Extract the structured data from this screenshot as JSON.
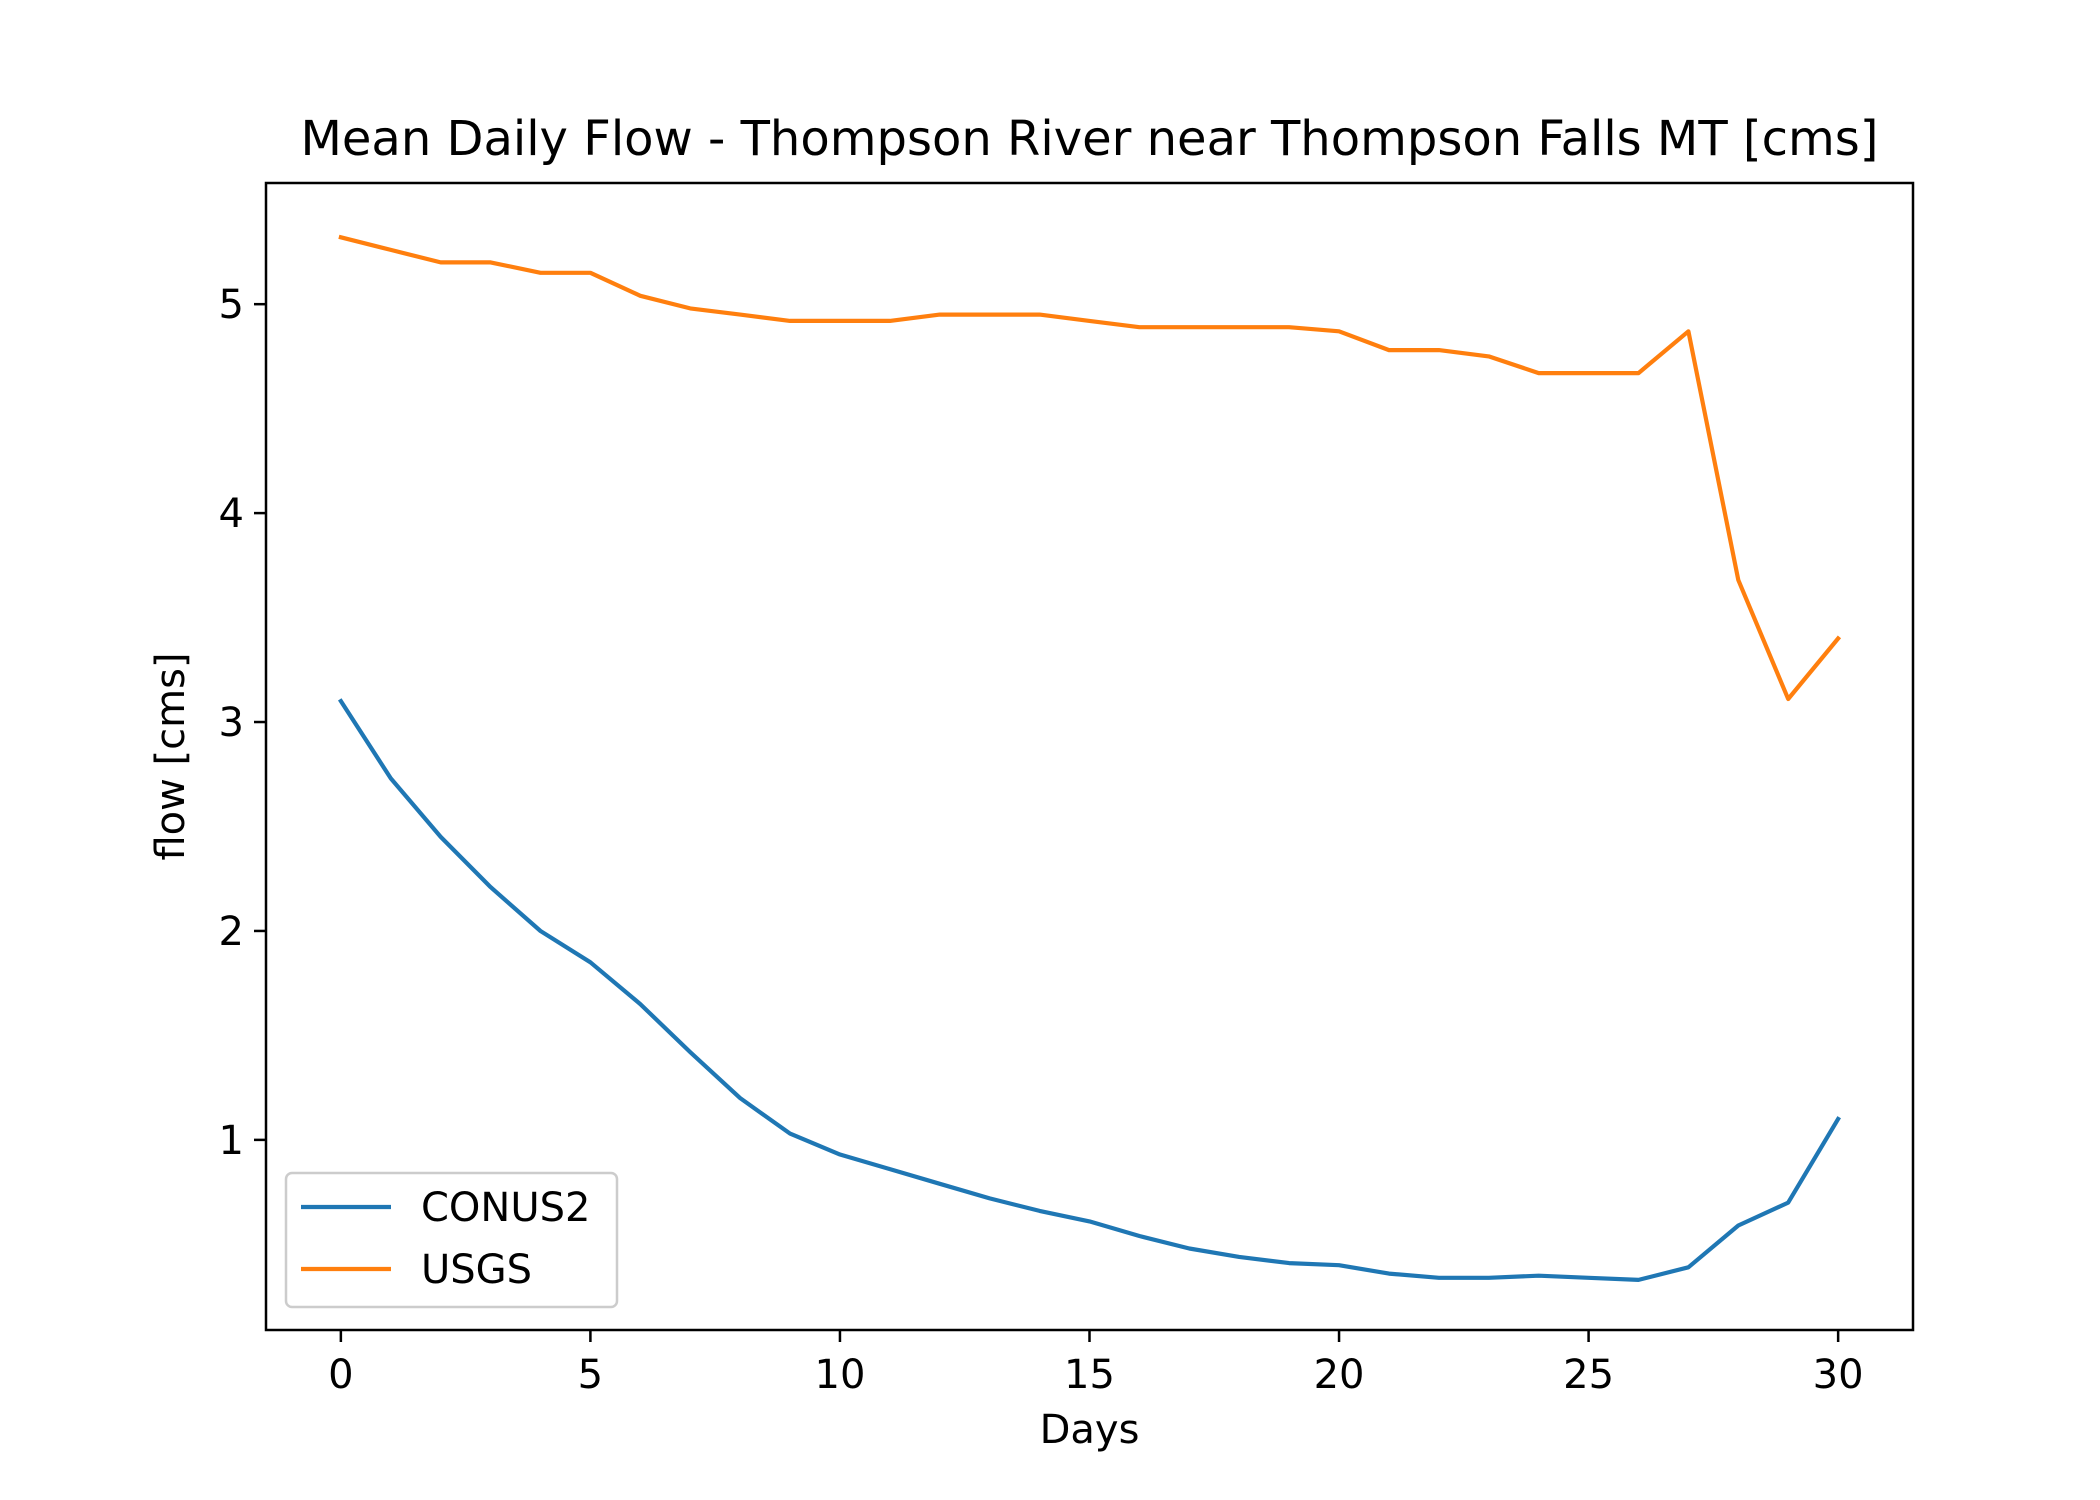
{
  "chart_data": {
    "type": "line",
    "title": "Mean Daily Flow - Thompson River near Thompson Falls MT [cms]",
    "xlabel": "Days",
    "ylabel": "flow [cms]",
    "xlim": [
      -1.5,
      31.5
    ],
    "ylim": [
      0.09,
      5.58
    ],
    "xticks": [
      0,
      5,
      10,
      15,
      20,
      25,
      30
    ],
    "yticks": [
      1,
      2,
      3,
      4,
      5
    ],
    "grid": false,
    "legend": {
      "placement": "lower-left",
      "entries": [
        "CONUS2",
        "USGS"
      ]
    },
    "x": [
      0,
      1,
      2,
      3,
      4,
      5,
      6,
      7,
      8,
      9,
      10,
      11,
      12,
      13,
      14,
      15,
      16,
      17,
      18,
      19,
      20,
      21,
      22,
      23,
      24,
      25,
      26,
      27,
      28,
      29,
      30
    ],
    "series": [
      {
        "name": "CONUS2",
        "color": "#1f77b4",
        "values": [
          3.1,
          2.73,
          2.45,
          2.21,
          2.0,
          1.85,
          1.65,
          1.42,
          1.2,
          1.03,
          0.93,
          0.86,
          0.79,
          0.72,
          0.66,
          0.61,
          0.54,
          0.48,
          0.44,
          0.41,
          0.4,
          0.36,
          0.34,
          0.34,
          0.35,
          0.34,
          0.33,
          0.39,
          0.59,
          0.7,
          1.1
        ]
      },
      {
        "name": "USGS",
        "color": "#ff7f0e",
        "values": [
          5.32,
          5.26,
          5.2,
          5.2,
          5.15,
          5.15,
          5.04,
          4.98,
          4.95,
          4.92,
          4.92,
          4.92,
          4.95,
          4.95,
          4.95,
          4.92,
          4.89,
          4.89,
          4.89,
          4.89,
          4.87,
          4.78,
          4.78,
          4.75,
          4.67,
          4.67,
          4.67,
          4.87,
          3.68,
          3.11,
          3.4
        ]
      }
    ]
  }
}
